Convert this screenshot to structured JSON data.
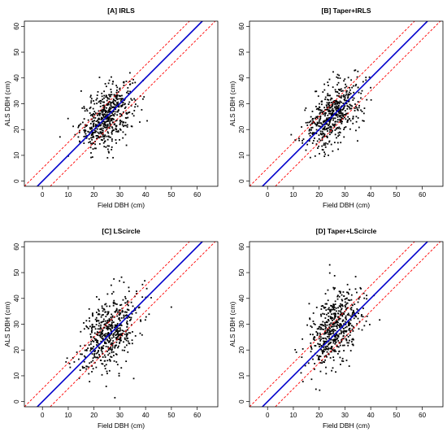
{
  "chart_data": [
    {
      "type": "scatter",
      "title": "[A] IRLS",
      "xlabel": "Field DBH (cm)",
      "ylabel": "ALS DBH (cm)",
      "xlim": [
        -7,
        68
      ],
      "ylim": [
        -2,
        62
      ],
      "xticks": [
        0,
        10,
        20,
        30,
        40,
        50,
        60
      ],
      "yticks": [
        0,
        10,
        20,
        30,
        40,
        50,
        60
      ],
      "reference_lines": [
        {
          "label": "1:1 line",
          "intercept": 0,
          "slope": 1,
          "color": "#0000cc",
          "style": "solid"
        },
        {
          "label": "upper band",
          "intercept": 5,
          "slope": 1,
          "color": "#ff0000",
          "style": "dashed"
        },
        {
          "label": "lower band",
          "intercept": -5,
          "slope": 1,
          "color": "#ff0000",
          "style": "dashed"
        }
      ],
      "point_cloud": {
        "count": 550,
        "x_mean": 25,
        "x_sd": 5.2,
        "y_mean": 25,
        "y_sd": 6.3,
        "correlation": 0.45
      },
      "point_color": "#000000"
    },
    {
      "type": "scatter",
      "title": "[B] Taper+IRLS",
      "xlabel": "Field DBH (cm)",
      "ylabel": "ALS DBH (cm)",
      "xlim": [
        -7,
        68
      ],
      "ylim": [
        -2,
        62
      ],
      "xticks": [
        0,
        10,
        20,
        30,
        40,
        50,
        60
      ],
      "yticks": [
        0,
        10,
        20,
        30,
        40,
        50,
        60
      ],
      "reference_lines": [
        {
          "label": "1:1 line",
          "intercept": 0,
          "slope": 1,
          "color": "#0000cc",
          "style": "solid"
        },
        {
          "label": "upper band",
          "intercept": 5,
          "slope": 1,
          "color": "#ff0000",
          "style": "dashed"
        },
        {
          "label": "lower band",
          "intercept": -5,
          "slope": 1,
          "color": "#ff0000",
          "style": "dashed"
        }
      ],
      "point_cloud": {
        "count": 550,
        "x_mean": 25.5,
        "x_sd": 5.3,
        "y_mean": 26,
        "y_sd": 6.4,
        "correlation": 0.5
      },
      "point_color": "#000000"
    },
    {
      "type": "scatter",
      "title": "[C] LScircle",
      "xlabel": "Field DBH (cm)",
      "ylabel": "ALS DBH (cm)",
      "xlim": [
        -7,
        68
      ],
      "ylim": [
        -2,
        62
      ],
      "xticks": [
        0,
        10,
        20,
        30,
        40,
        50,
        60
      ],
      "yticks": [
        0,
        10,
        20,
        30,
        40,
        50,
        60
      ],
      "reference_lines": [
        {
          "label": "1:1 line",
          "intercept": 0,
          "slope": 1,
          "color": "#0000cc",
          "style": "solid"
        },
        {
          "label": "upper band",
          "intercept": 5,
          "slope": 1,
          "color": "#ff0000",
          "style": "dashed"
        },
        {
          "label": "lower band",
          "intercept": -5,
          "slope": 1,
          "color": "#ff0000",
          "style": "dashed"
        }
      ],
      "point_cloud": {
        "count": 550,
        "x_mean": 26,
        "x_sd": 5.4,
        "y_mean": 27,
        "y_sd": 7.4,
        "correlation": 0.42
      },
      "point_color": "#000000"
    },
    {
      "type": "scatter",
      "title": "[D] Taper+LScircle",
      "xlabel": "Field DBH (cm)",
      "ylabel": "ALS DBH (cm)",
      "xlim": [
        -7,
        68
      ],
      "ylim": [
        -2,
        62
      ],
      "xticks": [
        0,
        10,
        20,
        30,
        40,
        50,
        60
      ],
      "yticks": [
        0,
        10,
        20,
        30,
        40,
        50,
        60
      ],
      "reference_lines": [
        {
          "label": "1:1 line",
          "intercept": 0,
          "slope": 1,
          "color": "#0000cc",
          "style": "solid"
        },
        {
          "label": "upper band",
          "intercept": 5,
          "slope": 1,
          "color": "#ff0000",
          "style": "dashed"
        },
        {
          "label": "lower band",
          "intercept": -5,
          "slope": 1,
          "color": "#ff0000",
          "style": "dashed"
        }
      ],
      "point_cloud": {
        "count": 550,
        "x_mean": 26,
        "x_sd": 5.2,
        "y_mean": 28,
        "y_sd": 7.6,
        "correlation": 0.42
      },
      "point_color": "#000000"
    }
  ]
}
